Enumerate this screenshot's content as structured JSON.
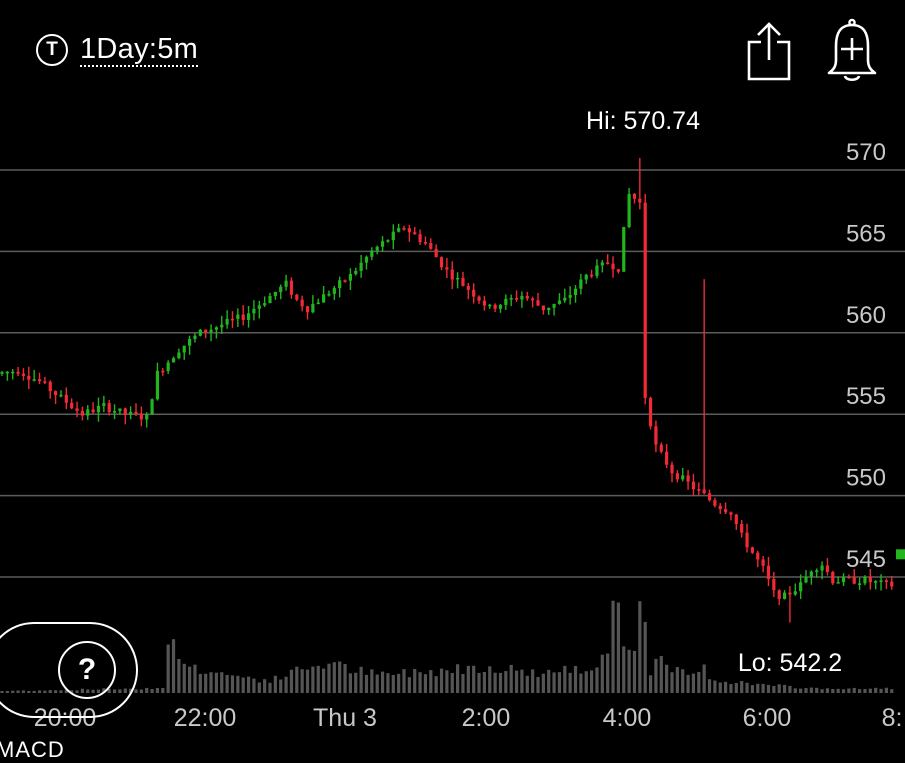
{
  "toolbar": {
    "interval_icon": "T",
    "interval_label": "1Day:5m",
    "share_icon": "share-icon",
    "alert_icon": "bell-plus-icon"
  },
  "help": {
    "label": "?"
  },
  "indicator": {
    "label": "MACD"
  },
  "chart_data": {
    "type": "candlestick",
    "ylim": [
      541.5,
      571.5
    ],
    "y_ticks": [
      570,
      565,
      560,
      555,
      550,
      545
    ],
    "y_tick_labels": [
      "570",
      "565",
      "560",
      "555",
      "550",
      "545"
    ],
    "x_tick_labels": [
      "20:00",
      "22:00",
      "Thu 3",
      "2:00",
      "4:00",
      "6:00",
      "8:"
    ],
    "high_label": "Hi: 570.74",
    "low_label": "Lo: 542.2",
    "colors": {
      "up": "#22b51e",
      "down": "#f22a35",
      "volume": "#555555",
      "grid": "#5c5c5c",
      "axis_text": "#c8c8c8"
    },
    "price_path": [
      [
        0,
        557.5
      ],
      [
        4,
        557.7
      ],
      [
        8,
        557.0
      ],
      [
        12,
        556.0
      ],
      [
        16,
        555.0
      ],
      [
        20,
        555.5
      ],
      [
        24,
        555.0
      ],
      [
        28,
        554.8
      ],
      [
        30,
        557.5
      ],
      [
        34,
        559.0
      ],
      [
        38,
        560.0
      ],
      [
        42,
        560.5
      ],
      [
        46,
        561.0
      ],
      [
        50,
        562.0
      ],
      [
        54,
        563.0
      ],
      [
        56,
        562.0
      ],
      [
        58,
        561.5
      ],
      [
        62,
        562.5
      ],
      [
        66,
        563.5
      ],
      [
        70,
        565.0
      ],
      [
        74,
        566.0
      ],
      [
        76,
        566.5
      ],
      [
        80,
        565.5
      ],
      [
        84,
        563.8
      ],
      [
        88,
        562.7
      ],
      [
        92,
        561.5
      ],
      [
        94,
        561.8
      ],
      [
        98,
        562.3
      ],
      [
        102,
        561.5
      ],
      [
        106,
        562.0
      ],
      [
        110,
        563.5
      ],
      [
        114,
        564.3
      ],
      [
        116,
        564.0
      ],
      [
        118,
        568.5
      ],
      [
        120,
        568.0
      ],
      [
        121,
        556.0
      ],
      [
        123,
        553.0
      ],
      [
        126,
        551.5
      ],
      [
        130,
        550.5
      ],
      [
        134,
        549.5
      ],
      [
        137,
        549.0
      ],
      [
        139,
        547.5
      ],
      [
        141,
        546.5
      ],
      [
        143,
        545.5
      ],
      [
        145,
        544.0
      ],
      [
        147,
        543.8
      ],
      [
        150,
        544.5
      ],
      [
        152,
        545.5
      ],
      [
        154,
        545.8
      ],
      [
        156,
        544.8
      ],
      [
        162,
        544.8
      ],
      [
        166,
        544.5
      ]
    ],
    "volume_path": [
      [
        0,
        2
      ],
      [
        30,
        5
      ],
      [
        31,
        62
      ],
      [
        33,
        32
      ],
      [
        35,
        27
      ],
      [
        40,
        20
      ],
      [
        50,
        12
      ],
      [
        56,
        24
      ],
      [
        60,
        30
      ],
      [
        70,
        18
      ],
      [
        80,
        22
      ],
      [
        90,
        27
      ],
      [
        100,
        20
      ],
      [
        110,
        24
      ],
      [
        112,
        44
      ],
      [
        113,
        37
      ],
      [
        114,
        113
      ],
      [
        115,
        84
      ],
      [
        116,
        52
      ],
      [
        118,
        48
      ],
      [
        119,
        120
      ],
      [
        120,
        58
      ],
      [
        121,
        16
      ],
      [
        122,
        34
      ],
      [
        125,
        22
      ],
      [
        130,
        18
      ],
      [
        131,
        37
      ],
      [
        132,
        14
      ],
      [
        140,
        9
      ],
      [
        150,
        5
      ],
      [
        160,
        4
      ],
      [
        166,
        5
      ]
    ]
  }
}
